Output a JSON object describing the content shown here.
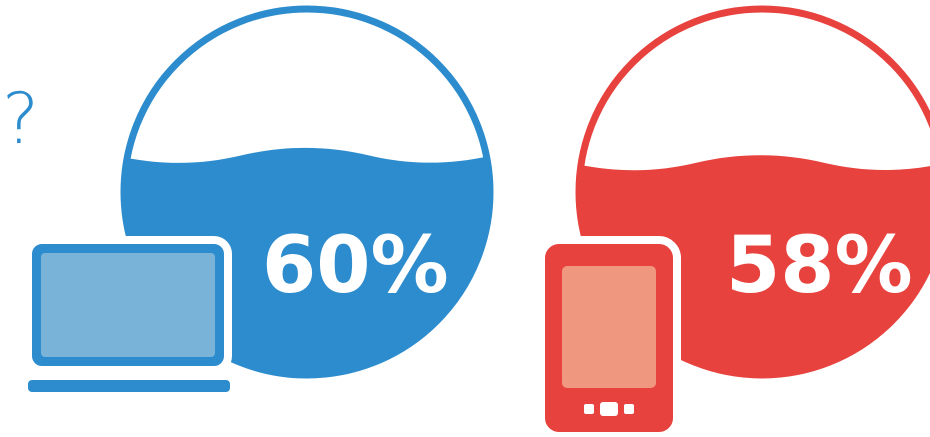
{
  "partial_text": "?",
  "items": [
    {
      "device": "laptop-icon",
      "value": 60,
      "label": "60%",
      "color": "#2d8ccd",
      "screen_color": "#7ab3d8"
    },
    {
      "device": "tablet-icon",
      "value": 58,
      "label": "58%",
      "color": "#e7423e",
      "screen_color": "#f0977f"
    }
  ]
}
